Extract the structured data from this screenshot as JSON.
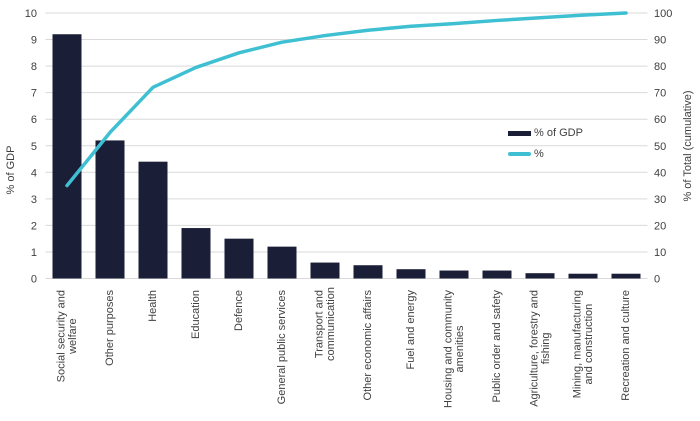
{
  "chart_data": {
    "type": "pareto",
    "title": "",
    "categories": [
      "Social security and welfare",
      "Other purposes",
      "Health",
      "Education",
      "Defence",
      "General public services",
      "Transport and communication",
      "Other economic affairs",
      "Fuel and energy",
      "Housing and community amenities",
      "Public order and safety",
      "Agriculture, forestry and fishing",
      "Mining, manufacturing and construction",
      "Recreation and culture"
    ],
    "category_lines": [
      [
        "Social security and",
        "welfare"
      ],
      [
        "Other purposes"
      ],
      [
        "Health"
      ],
      [
        "Education"
      ],
      [
        "Defence"
      ],
      [
        "General public services"
      ],
      [
        "Transport and",
        "communication"
      ],
      [
        "Other economic affairs"
      ],
      [
        "Fuel and energy"
      ],
      [
        "Housing and community",
        "amenities"
      ],
      [
        "Public order and safety"
      ],
      [
        "Agriculture, forestry and",
        "fishing"
      ],
      [
        "Mining, manufacturing",
        "and construction"
      ],
      [
        "Recreation and culture"
      ]
    ],
    "series": [
      {
        "name": "% of GDP",
        "type": "bar",
        "axis": "left",
        "color": "#1b1e37",
        "values": [
          9.2,
          5.2,
          4.4,
          1.9,
          1.5,
          1.2,
          0.6,
          0.5,
          0.35,
          0.3,
          0.3,
          0.2,
          0.18,
          0.18
        ]
      },
      {
        "name": "%",
        "type": "line",
        "axis": "right",
        "color": "#3fc0d2",
        "values": [
          35,
          55,
          72,
          79.5,
          85,
          89,
          91.5,
          93.5,
          95,
          96,
          97.2,
          98.2,
          99.2,
          100
        ]
      }
    ],
    "ylabel_left": "% of GDP",
    "ylabel_right": "% of Total (cumulative)",
    "left_axis": {
      "min": 0,
      "max": 10,
      "step": 1,
      "ticks": [
        0,
        1,
        2,
        3,
        4,
        5,
        6,
        7,
        8,
        9,
        10
      ]
    },
    "right_axis": {
      "min": 0,
      "max": 100,
      "step": 10,
      "ticks": [
        0,
        10,
        20,
        30,
        40,
        50,
        60,
        70,
        80,
        90,
        100
      ]
    },
    "grid": true,
    "legend_position": "right-middle",
    "colors": {
      "grid": "#d9d9d9",
      "text": "#404040",
      "background": "#ffffff"
    }
  }
}
